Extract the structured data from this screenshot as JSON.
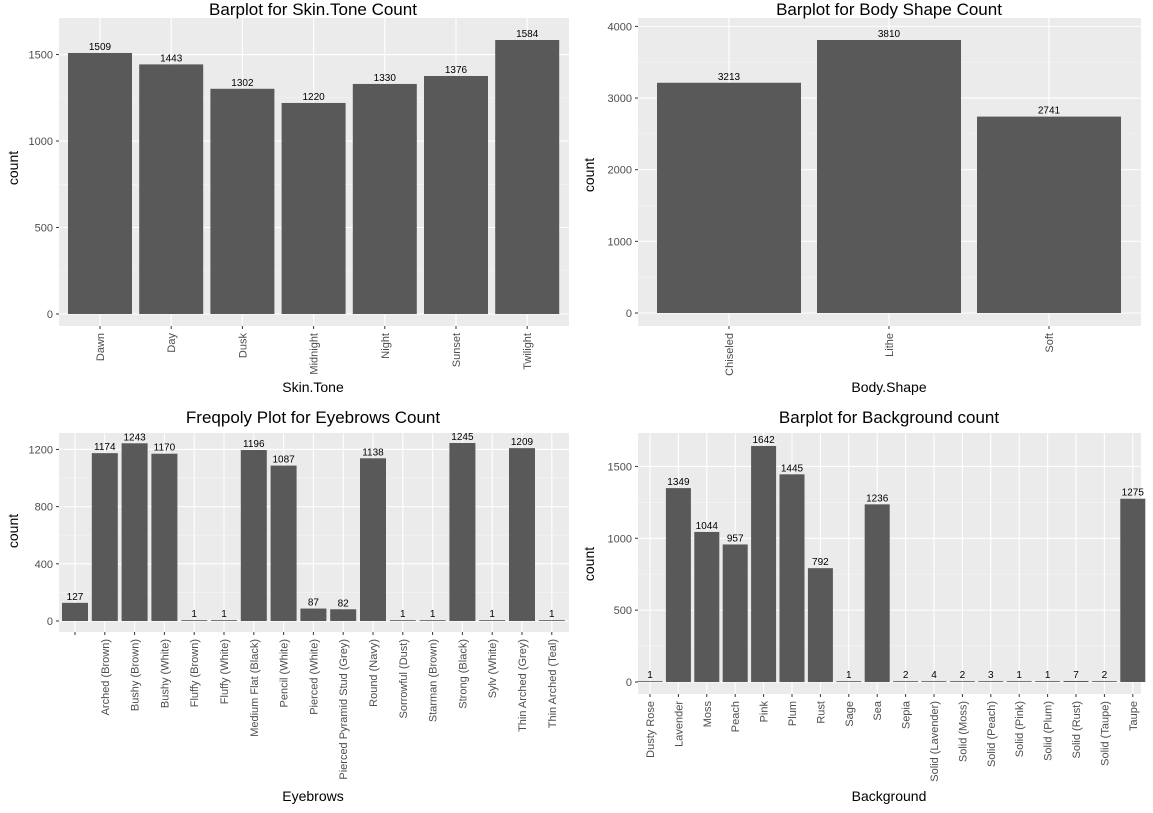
{
  "chart_data": [
    {
      "type": "bar",
      "title": "Barplot for Skin.Tone Count",
      "xlabel": "Skin.Tone",
      "ylabel": "count",
      "categories": [
        "Dawn",
        "Day",
        "Dusk",
        "Midnight",
        "Night",
        "Sunset",
        "Twilight"
      ],
      "values": [
        1509,
        1443,
        1302,
        1220,
        1330,
        1376,
        1584
      ],
      "ylim": [
        0,
        1600
      ],
      "yticks": [
        0,
        500,
        1000,
        1500
      ],
      "ytick_labels": [
        "0",
        "500",
        "1000",
        "1500"
      ],
      "grid": true
    },
    {
      "type": "bar",
      "title": "Barplot for Body Shape Count",
      "xlabel": "Body.Shape",
      "ylabel": "count",
      "categories": [
        "Chiseled",
        "Lithe",
        "Soft"
      ],
      "values": [
        3213,
        3810,
        2741
      ],
      "ylim": [
        0,
        4000
      ],
      "yticks": [
        0,
        1000,
        2000,
        3000,
        4000
      ],
      "ytick_labels": [
        "0",
        "1000",
        "2000",
        "3000",
        "4000"
      ],
      "grid": true
    },
    {
      "type": "bar",
      "title": "Freqpoly Plot for Eyebrows Count",
      "xlabel": "Eyebrows",
      "ylabel": "count",
      "categories": [
        "",
        "Arched (Brown)",
        "Bushy (Brown)",
        "Bushy (White)",
        "Fluffy (Brown)",
        "Fluffy (White)",
        "Medium Flat (Black)",
        "Pencil (White)",
        "Pierced (White)",
        "Pierced Pyramid Stud (Grey)",
        "Round (Navy)",
        "Sorrowful (Dust)",
        "Starman (Brown)",
        "Strong (Black)",
        "Sylv (White)",
        "Thin Arched (Grey)",
        "Thin Arched (Teal)"
      ],
      "values": [
        127,
        1174,
        1243,
        1170,
        1,
        1,
        1196,
        1087,
        87,
        82,
        1138,
        1,
        1,
        1245,
        1,
        1209,
        1
      ],
      "ylim": [
        0,
        1250
      ],
      "yticks": [
        0,
        400,
        800,
        1200
      ],
      "ytick_labels": [
        "0",
        "400",
        "800",
        "1200"
      ],
      "grid": true
    },
    {
      "type": "bar",
      "title": "Barplot for Background count",
      "xlabel": "Background",
      "ylabel": "count",
      "categories": [
        "Dusty Rose",
        "Lavender",
        "Moss",
        "Peach",
        "Pink",
        "Plum",
        "Rust",
        "Sage",
        "Sea",
        "Sepia",
        "Solid (Lavender)",
        "Solid (Moss)",
        "Solid (Peach)",
        "Solid (Pink)",
        "Solid (Plum)",
        "Solid (Rust)",
        "Solid (Taupe)",
        "Taupe"
      ],
      "values": [
        1,
        1349,
        1044,
        957,
        1642,
        1445,
        792,
        1,
        1236,
        2,
        4,
        2,
        3,
        1,
        1,
        7,
        2,
        1275
      ],
      "ylim": [
        0,
        1650
      ],
      "yticks": [
        0,
        500,
        1000,
        1500
      ],
      "ytick_labels": [
        "0",
        "500",
        "1000",
        "1500"
      ],
      "grid": true
    }
  ],
  "colors": {
    "bar": "#595959",
    "panel_bg": "#ebebeb",
    "grid_major": "#ffffff",
    "grid_minor": "#f5f5f5",
    "tick_label": "#4d4d4d",
    "tick_mark": "#333333",
    "text": "#000000"
  }
}
